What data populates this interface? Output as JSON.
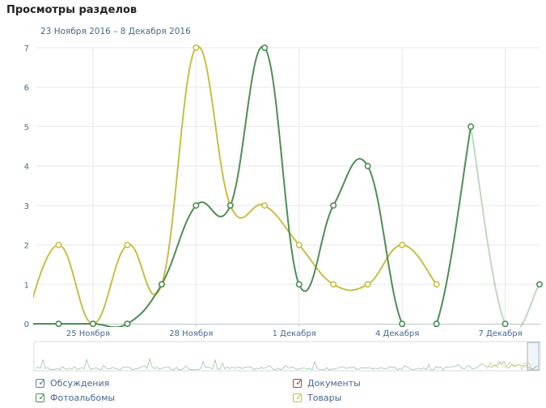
{
  "title": "Просмотры разделов",
  "date_range": "23 Ноября 2016 – 8 Декабря 2016",
  "chart_data": {
    "type": "line",
    "x": [
      "23.11",
      "24.11",
      "25.11",
      "26.11",
      "27.11",
      "28.11",
      "29.11",
      "30.11",
      "01.12",
      "02.12",
      "03.12",
      "04.12",
      "05.12",
      "06.12",
      "07.12",
      "08.12"
    ],
    "x_tick_labels": [
      "25 Ноября",
      "28 Ноября",
      "1 Декабря",
      "4 Декабря",
      "7 Декабря"
    ],
    "ylim": [
      0,
      7
    ],
    "y_ticks": [
      "0",
      "1",
      "2",
      "3",
      "4",
      "5",
      "6",
      "7"
    ],
    "grid": true,
    "series": [
      {
        "name": "Фотоальбомы",
        "color": "#4d8e53",
        "values": [
          0,
          0,
          0,
          0,
          1,
          3,
          3,
          7,
          1,
          3,
          4,
          0,
          0,
          5,
          0,
          1
        ]
      },
      {
        "name": "Товары",
        "color": "#c9bd45",
        "values": [
          0,
          2,
          0,
          2,
          1,
          7,
          3,
          3,
          2,
          1,
          1,
          2,
          1,
          null,
          null,
          null
        ]
      }
    ]
  },
  "legend": [
    {
      "label": "Обсуждения",
      "color": "#5b7fa6",
      "checked": true
    },
    {
      "label": "Документы",
      "color": "#b0413e",
      "checked": true
    },
    {
      "label": "Фотоальбомы",
      "color": "#4d8e53",
      "checked": true
    },
    {
      "label": "Товары",
      "color": "#c9bd45",
      "checked": true
    }
  ]
}
